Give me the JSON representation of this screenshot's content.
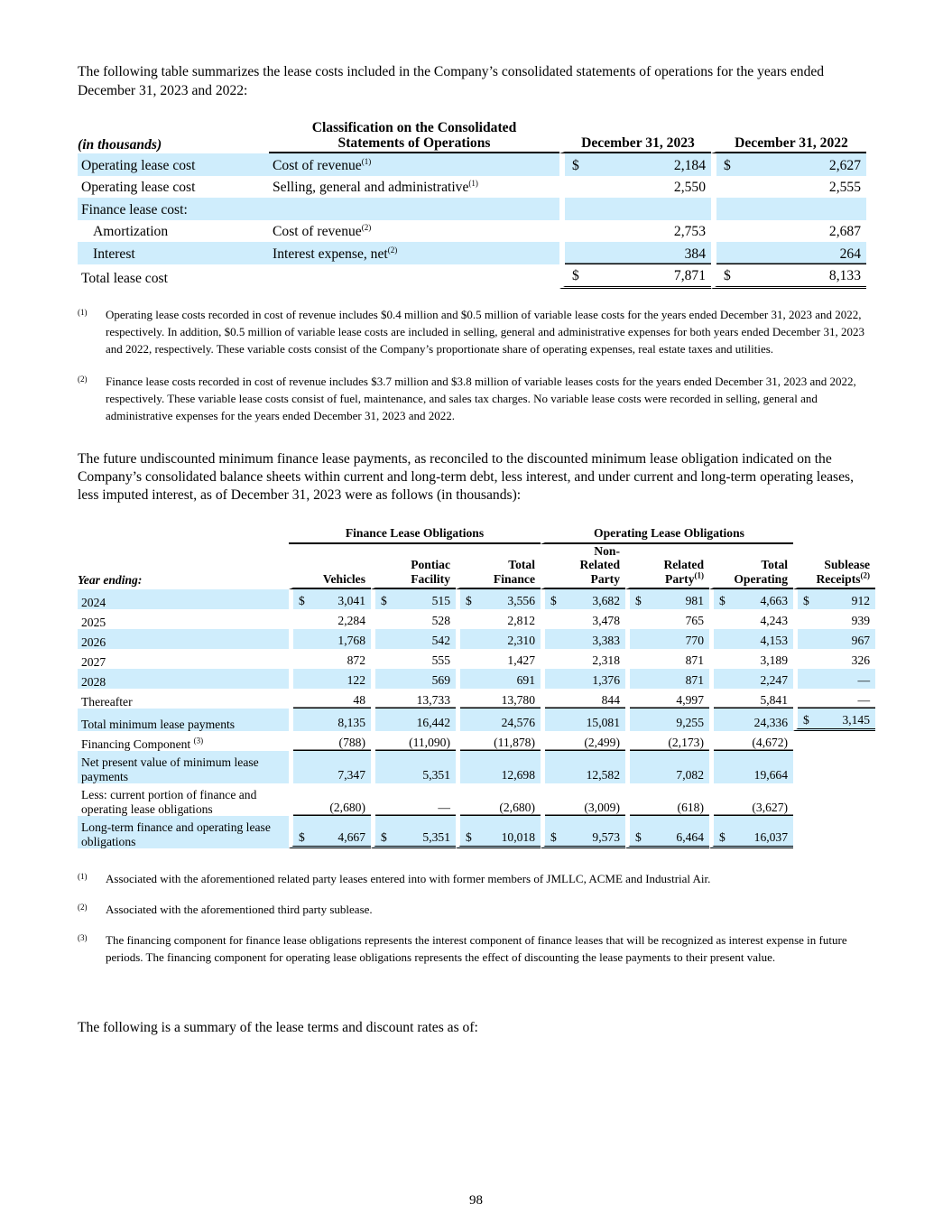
{
  "intro1": "The following table summarizes the lease costs included in the Company’s consolidated statements of operations for the years ended December 31, 2023 and 2022:",
  "table1": {
    "headers": {
      "label": "(in thousands)",
      "classification_line1": "Classification on the Consolidated",
      "classification_line2": "Statements of Operations",
      "col2023": "December 31, 2023",
      "col2022": "December 31, 2022"
    },
    "rows": [
      {
        "label": "Operating lease cost",
        "class": "Cost of revenue",
        "sup": "(1)",
        "d1": "$",
        "v2023": "2,184",
        "d2": "$",
        "v2022": "2,627"
      },
      {
        "label": "Operating lease cost",
        "class": "Selling, general and administrative",
        "sup": "(1)",
        "d1": "",
        "v2023": "2,550",
        "d2": "",
        "v2022": "2,555"
      },
      {
        "label": "Finance lease cost:",
        "class": "",
        "sup": "",
        "d1": "",
        "v2023": "",
        "d2": "",
        "v2022": ""
      },
      {
        "label": "Amortization",
        "class": "Cost of revenue",
        "sup": "(2)",
        "d1": "",
        "v2023": "2,753",
        "d2": "",
        "v2022": "2,687"
      },
      {
        "label": "Interest",
        "class": "Interest expense, net",
        "sup": "(2)",
        "d1": "",
        "v2023": "384",
        "d2": "",
        "v2022": "264"
      },
      {
        "label": "Total lease cost",
        "class": "",
        "sup": "",
        "d1": "$",
        "v2023": "7,871",
        "d2": "$",
        "v2022": "8,133"
      }
    ]
  },
  "footnotes1": [
    {
      "mark": "(1)",
      "text": "Operating lease costs recorded in cost of revenue includes $0.4 million and $0.5 million of variable lease costs for the years ended December 31, 2023 and 2022, respectively. In addition, $0.5 million of variable lease costs are included in selling, general and administrative expenses for both years ended December 31, 2023 and 2022, respectively. These variable costs consist of the Company’s proportionate share of operating expenses, real estate taxes and utilities."
    },
    {
      "mark": "(2)",
      "text": "Finance lease costs recorded in cost of revenue includes $3.7 million and $3.8 million of variable leases costs for the years ended December 31, 2023 and 2022, respectively. These variable lease costs consist of fuel, maintenance, and sales tax charges. No variable lease costs were recorded in selling, general and administrative expenses for the years ended December 31, 2023 and 2022."
    }
  ],
  "intro2": "The future undiscounted minimum finance lease payments, as reconciled to the discounted minimum lease obligation indicated on the Company’s consolidated balance sheets within current and long-term debt, less interest, and under current and long-term operating leases, less imputed interest, as of December 31, 2023 were as follows (in thousands):",
  "table2": {
    "group_finance": "Finance Lease Obligations",
    "group_operating": "Operating Lease Obligations",
    "year_label": "Year ending:",
    "columns": [
      {
        "lines": [
          "Vehicles"
        ],
        "sup": ""
      },
      {
        "lines": [
          "Pontiac",
          "Facility"
        ],
        "sup": ""
      },
      {
        "lines": [
          "Total",
          "Finance"
        ],
        "sup": ""
      },
      {
        "lines": [
          "Non-",
          "Related",
          "Party"
        ],
        "sup": ""
      },
      {
        "lines": [
          "Related",
          "Party"
        ],
        "sup": "(1)"
      },
      {
        "lines": [
          "Total",
          "Operating"
        ],
        "sup": ""
      },
      {
        "lines": [
          "Sublease",
          "Receipts"
        ],
        "sup": "(2)"
      }
    ],
    "rows": [
      {
        "label": "2024",
        "sup": "",
        "cells": [
          [
            "$",
            "3,041"
          ],
          [
            "$",
            "515"
          ],
          [
            "$",
            "3,556"
          ],
          [
            "$",
            "3,682"
          ],
          [
            "$",
            "981"
          ],
          [
            "$",
            "4,663"
          ],
          [
            "$",
            "912"
          ]
        ]
      },
      {
        "label": "2025",
        "sup": "",
        "cells": [
          [
            "",
            "2,284"
          ],
          [
            "",
            "528"
          ],
          [
            "",
            "2,812"
          ],
          [
            "",
            "3,478"
          ],
          [
            "",
            "765"
          ],
          [
            "",
            "4,243"
          ],
          [
            "",
            "939"
          ]
        ]
      },
      {
        "label": "2026",
        "sup": "",
        "cells": [
          [
            "",
            "1,768"
          ],
          [
            "",
            "542"
          ],
          [
            "",
            "2,310"
          ],
          [
            "",
            "3,383"
          ],
          [
            "",
            "770"
          ],
          [
            "",
            "4,153"
          ],
          [
            "",
            "967"
          ]
        ]
      },
      {
        "label": "2027",
        "sup": "",
        "cells": [
          [
            "",
            "872"
          ],
          [
            "",
            "555"
          ],
          [
            "",
            "1,427"
          ],
          [
            "",
            "2,318"
          ],
          [
            "",
            "871"
          ],
          [
            "",
            "3,189"
          ],
          [
            "",
            "326"
          ]
        ]
      },
      {
        "label": "2028",
        "sup": "",
        "cells": [
          [
            "",
            "122"
          ],
          [
            "",
            "569"
          ],
          [
            "",
            "691"
          ],
          [
            "",
            "1,376"
          ],
          [
            "",
            "871"
          ],
          [
            "",
            "2,247"
          ],
          [
            "",
            "—"
          ]
        ]
      },
      {
        "label": "Thereafter",
        "sup": "",
        "cells": [
          [
            "",
            "48"
          ],
          [
            "",
            "13,733"
          ],
          [
            "",
            "13,780"
          ],
          [
            "",
            "844"
          ],
          [
            "",
            "4,997"
          ],
          [
            "",
            "5,841"
          ],
          [
            "",
            "—"
          ]
        ]
      },
      {
        "label": "Total minimum lease payments",
        "sup": "",
        "cells": [
          [
            "",
            "8,135"
          ],
          [
            "",
            "16,442"
          ],
          [
            "",
            "24,576"
          ],
          [
            "",
            "15,081"
          ],
          [
            "",
            "9,255"
          ],
          [
            "",
            "24,336"
          ],
          [
            "$",
            "3,145"
          ]
        ]
      },
      {
        "label": "Financing Component",
        "sup": "(3)",
        "cells": [
          [
            "",
            "(788)"
          ],
          [
            "",
            "(11,090)"
          ],
          [
            "",
            "(11,878)"
          ],
          [
            "",
            "(2,499)"
          ],
          [
            "",
            "(2,173)"
          ],
          [
            "",
            "(4,672)"
          ],
          [
            "",
            ""
          ]
        ]
      },
      {
        "label": "Net present value of minimum lease payments",
        "sup": "",
        "cells": [
          [
            "",
            "7,347"
          ],
          [
            "",
            "5,351"
          ],
          [
            "",
            "12,698"
          ],
          [
            "",
            "12,582"
          ],
          [
            "",
            "7,082"
          ],
          [
            "",
            "19,664"
          ],
          [
            "",
            ""
          ]
        ]
      },
      {
        "label": "Less: current portion of finance and operating lease obligations",
        "sup": "",
        "cells": [
          [
            "",
            "(2,680)"
          ],
          [
            "",
            "—"
          ],
          [
            "",
            "(2,680)"
          ],
          [
            "",
            "(3,009)"
          ],
          [
            "",
            "(618)"
          ],
          [
            "",
            "(3,627)"
          ],
          [
            "",
            ""
          ]
        ]
      },
      {
        "label": "Long-term finance and operating lease obligations",
        "sup": "",
        "cells": [
          [
            "$",
            "4,667"
          ],
          [
            "$",
            "5,351"
          ],
          [
            "$",
            "10,018"
          ],
          [
            "$",
            "9,573"
          ],
          [
            "$",
            "6,464"
          ],
          [
            "$",
            "16,037"
          ],
          [
            "",
            ""
          ]
        ]
      }
    ]
  },
  "footnotes2": [
    {
      "mark": "(1)",
      "text": "Associated with the aforementioned related party leases entered into with former members of JMLLC, ACME and Industrial Air."
    },
    {
      "mark": "(2)",
      "text": "Associated with the aforementioned third party sublease."
    },
    {
      "mark": "(3)",
      "text": "The financing component for finance lease obligations represents the interest component of finance leases that will be recognized as interest expense in future periods. The financing component for operating lease obligations represents the effect of discounting the lease payments to their present value."
    }
  ],
  "intro3": "The following is a summary of the lease terms and discount rates as of:",
  "page_number": "98"
}
